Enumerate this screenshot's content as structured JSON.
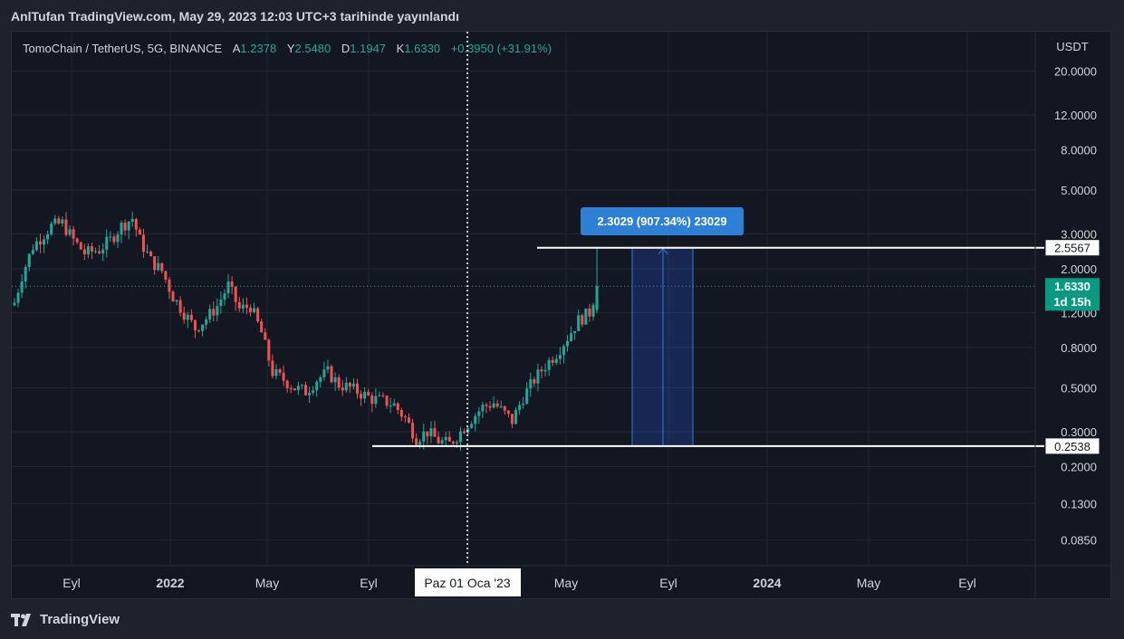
{
  "header": {
    "title": "AnlTufan TradingView.com, May 29, 2023 12:03 UTC+3 tarihinde yayınlandı"
  },
  "legend": {
    "symbol": "TomoChain / TetherUS, 5G, BINANCE",
    "open_label": "A",
    "open_value": "1.2378",
    "high_label": "Y",
    "high_value": "2.5480",
    "low_label": "D",
    "low_value": "1.1947",
    "close_label": "K",
    "close_value": "1.6330",
    "change": "+0.3950 (+31.91%)"
  },
  "footer": {
    "logo_text": "TradingView"
  },
  "colors": {
    "up": "#26a69a",
    "down": "#ef5350",
    "background": "#131722",
    "grid": "#232734",
    "price_badge": "#089981",
    "measure_label": "#2e7fd6"
  },
  "chart_data": {
    "type": "candlestick",
    "scale": "log",
    "y_axis_unit": "USDT",
    "y_ticks": [
      "20.0000",
      "12.0000",
      "8.0000",
      "5.0000",
      "3.0000",
      "2.0000",
      "1.2000",
      "0.8000",
      "0.5000",
      "0.3000",
      "0.2000",
      "0.1300",
      "0.0850"
    ],
    "x_ticks": [
      "Eyl",
      "2022",
      "May",
      "Eyl",
      "Oca",
      "May",
      "Eyl",
      "2024",
      "May",
      "Eyl"
    ],
    "x_tick_bold": [
      false,
      true,
      false,
      false,
      true,
      false,
      false,
      true,
      false,
      false
    ],
    "crosshair_label": "Paz 01 Oca '23",
    "current_price": "1.6330",
    "countdown": "1d 15h",
    "levels": [
      {
        "value": 2.5567,
        "label": "2.5567"
      },
      {
        "value": 0.2538,
        "label": "0.2538"
      }
    ],
    "measure": {
      "from": 0.2538,
      "to": 2.5567,
      "label": "2.3029 (907.34%) 23029"
    },
    "waypoints": [
      [
        0,
        1.35
      ],
      [
        2,
        1.85
      ],
      [
        5,
        2.6
      ],
      [
        10,
        3.3
      ],
      [
        13,
        3.4
      ],
      [
        16,
        2.8
      ],
      [
        19,
        2.4
      ],
      [
        23,
        2.5
      ],
      [
        26,
        2.8
      ],
      [
        29,
        3.3
      ],
      [
        32,
        3.6
      ],
      [
        34,
        2.8
      ],
      [
        37,
        2.2
      ],
      [
        40,
        1.95
      ],
      [
        43,
        1.45
      ],
      [
        46,
        1.2
      ],
      [
        49,
        1.0
      ],
      [
        52,
        1.12
      ],
      [
        55,
        1.3
      ],
      [
        58,
        1.65
      ],
      [
        61,
        1.25
      ],
      [
        64,
        1.3
      ],
      [
        67,
        0.95
      ],
      [
        70,
        0.6
      ],
      [
        73,
        0.55
      ],
      [
        76,
        0.5
      ],
      [
        79,
        0.48
      ],
      [
        82,
        0.55
      ],
      [
        85,
        0.6
      ],
      [
        88,
        0.52
      ],
      [
        91,
        0.5
      ],
      [
        94,
        0.47
      ],
      [
        97,
        0.44
      ],
      [
        100,
        0.43
      ],
      [
        103,
        0.41
      ],
      [
        106,
        0.35
      ],
      [
        109,
        0.28
      ],
      [
        112,
        0.3
      ],
      [
        115,
        0.27
      ],
      [
        118,
        0.26
      ],
      [
        121,
        0.3
      ],
      [
        124,
        0.35
      ],
      [
        127,
        0.4
      ],
      [
        130,
        0.42
      ],
      [
        133,
        0.37
      ],
      [
        135,
        0.34
      ],
      [
        138,
        0.45
      ],
      [
        141,
        0.55
      ],
      [
        144,
        0.65
      ],
      [
        147,
        0.75
      ],
      [
        150,
        0.9
      ],
      [
        153,
        1.1
      ],
      [
        156,
        1.2
      ],
      [
        158,
        1.63
      ]
    ]
  }
}
